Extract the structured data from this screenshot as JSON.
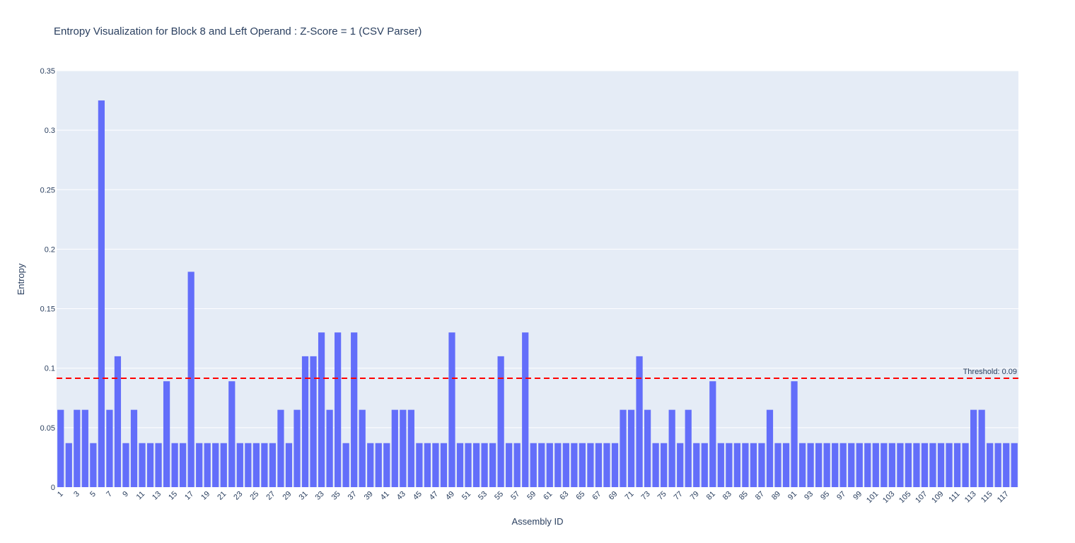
{
  "chart_data": {
    "type": "bar",
    "title": "Entropy Visualization for Block 8 and Left Operand : Z-Score = 1 (CSV Parser)",
    "xlabel": "Assembly ID",
    "ylabel": "Entropy",
    "ylim": [
      0,
      0.35
    ],
    "yticks": [
      0,
      0.05,
      0.1,
      0.15,
      0.2,
      0.25,
      0.3,
      0.35
    ],
    "ytick_labels": [
      "0",
      "0.05",
      "0.1",
      "0.15",
      "0.2",
      "0.25",
      "0.3",
      "0.35"
    ],
    "x": [
      1,
      2,
      3,
      4,
      5,
      6,
      7,
      8,
      9,
      10,
      11,
      12,
      13,
      14,
      15,
      16,
      17,
      18,
      19,
      20,
      21,
      22,
      23,
      24,
      25,
      26,
      27,
      28,
      29,
      30,
      31,
      32,
      33,
      34,
      35,
      36,
      37,
      38,
      39,
      40,
      41,
      42,
      43,
      44,
      45,
      46,
      47,
      48,
      49,
      50,
      51,
      52,
      53,
      54,
      55,
      56,
      57,
      58,
      59,
      60,
      61,
      62,
      63,
      64,
      65,
      66,
      67,
      68,
      69,
      70,
      71,
      72,
      73,
      74,
      75,
      76,
      77,
      78,
      79,
      80,
      81,
      82,
      83,
      84,
      85,
      86,
      87,
      88,
      89,
      90,
      91,
      92,
      93,
      94,
      95,
      96,
      97,
      98,
      99,
      100,
      101,
      102,
      103,
      104,
      105,
      106,
      107,
      108,
      109,
      110,
      111,
      112,
      113,
      114,
      115,
      116,
      117,
      118
    ],
    "values": [
      0.065,
      0.037,
      0.065,
      0.065,
      0.037,
      0.325,
      0.065,
      0.11,
      0.037,
      0.065,
      0.037,
      0.037,
      0.037,
      0.089,
      0.037,
      0.037,
      0.181,
      0.037,
      0.037,
      0.037,
      0.037,
      0.089,
      0.037,
      0.037,
      0.037,
      0.037,
      0.037,
      0.065,
      0.037,
      0.065,
      0.11,
      0.11,
      0.13,
      0.065,
      0.13,
      0.037,
      0.13,
      0.065,
      0.037,
      0.037,
      0.037,
      0.065,
      0.065,
      0.065,
      0.037,
      0.037,
      0.037,
      0.037,
      0.13,
      0.037,
      0.037,
      0.037,
      0.037,
      0.037,
      0.11,
      0.037,
      0.037,
      0.13,
      0.037,
      0.037,
      0.037,
      0.037,
      0.037,
      0.037,
      0.037,
      0.037,
      0.037,
      0.037,
      0.037,
      0.065,
      0.065,
      0.11,
      0.065,
      0.037,
      0.037,
      0.065,
      0.037,
      0.065,
      0.037,
      0.037,
      0.089,
      0.037,
      0.037,
      0.037,
      0.037,
      0.037,
      0.037,
      0.065,
      0.037,
      0.037,
      0.089,
      0.037,
      0.037,
      0.037,
      0.037,
      0.037,
      0.037,
      0.037,
      0.037,
      0.037,
      0.037,
      0.037,
      0.037,
      0.037,
      0.037,
      0.037,
      0.037,
      0.037,
      0.037,
      0.037,
      0.037,
      0.037,
      0.065,
      0.065,
      0.037,
      0.037,
      0.037,
      0.037
    ],
    "threshold": {
      "value": 0.0915,
      "label": "Threshold: 0.09",
      "color": "#ff0000"
    },
    "bar_color": "#636efa",
    "plot_bg": "#e5ecf6",
    "grid": true
  }
}
